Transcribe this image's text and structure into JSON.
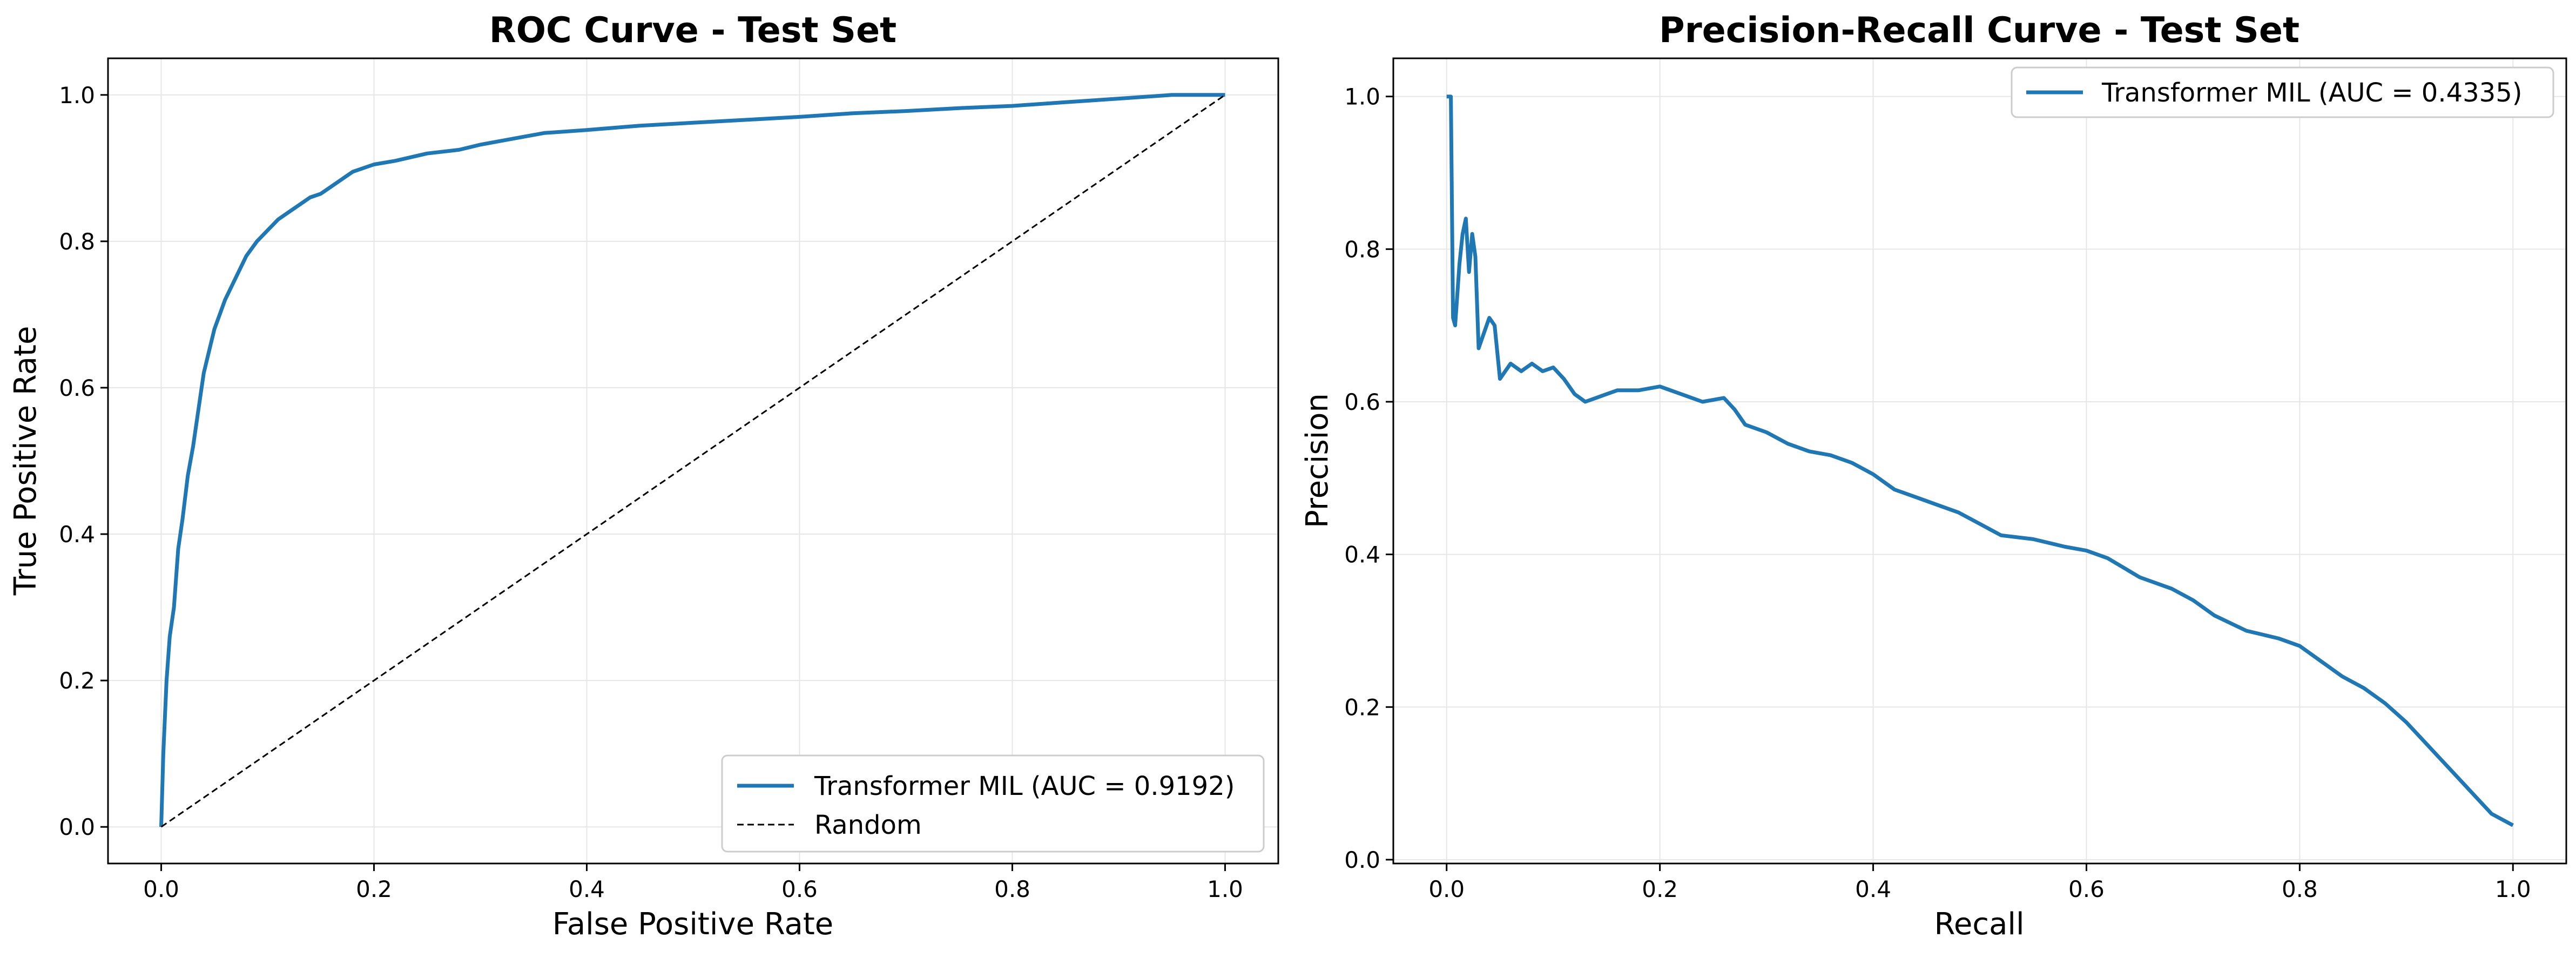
{
  "colors": {
    "series": "#1f77b4",
    "diagonal": "#000000",
    "grid": "#e6e6e6"
  },
  "chart_data": [
    {
      "type": "line",
      "title": "ROC Curve - Test Set",
      "xlabel": "False Positive Rate",
      "ylabel": "True Positive Rate",
      "xlim": [
        -0.05,
        1.05
      ],
      "ylim": [
        -0.05,
        1.05
      ],
      "xticks": [
        0.0,
        0.2,
        0.4,
        0.6,
        0.8,
        1.0
      ],
      "yticks": [
        0.0,
        0.2,
        0.4,
        0.6,
        0.8,
        1.0
      ],
      "xtick_labels": [
        "0.0",
        "0.2",
        "0.4",
        "0.6",
        "0.8",
        "1.0"
      ],
      "ytick_labels": [
        "0.0",
        "0.2",
        "0.4",
        "0.6",
        "0.8",
        "1.0"
      ],
      "grid": true,
      "legend_position": "lower-right",
      "series": [
        {
          "name": "Transformer MIL (AUC = 0.9192)",
          "style": "solid",
          "x": [
            0.0,
            0.002,
            0.005,
            0.008,
            0.012,
            0.016,
            0.02,
            0.025,
            0.03,
            0.035,
            0.04,
            0.045,
            0.05,
            0.06,
            0.07,
            0.08,
            0.09,
            0.1,
            0.11,
            0.12,
            0.13,
            0.14,
            0.15,
            0.16,
            0.18,
            0.2,
            0.22,
            0.25,
            0.28,
            0.3,
            0.33,
            0.36,
            0.4,
            0.45,
            0.5,
            0.55,
            0.6,
            0.65,
            0.7,
            0.75,
            0.8,
            0.85,
            0.9,
            0.95,
            1.0
          ],
          "y": [
            0.0,
            0.1,
            0.2,
            0.26,
            0.3,
            0.38,
            0.42,
            0.48,
            0.52,
            0.57,
            0.62,
            0.65,
            0.68,
            0.72,
            0.75,
            0.78,
            0.8,
            0.815,
            0.83,
            0.84,
            0.85,
            0.86,
            0.865,
            0.875,
            0.895,
            0.905,
            0.91,
            0.92,
            0.925,
            0.932,
            0.94,
            0.948,
            0.952,
            0.958,
            0.962,
            0.966,
            0.97,
            0.975,
            0.978,
            0.982,
            0.985,
            0.99,
            0.995,
            1.0,
            1.0
          ]
        },
        {
          "name": "Random",
          "style": "dashed",
          "x": [
            0.0,
            1.0
          ],
          "y": [
            0.0,
            1.0
          ]
        }
      ]
    },
    {
      "type": "line",
      "title": "Precision-Recall Curve - Test Set",
      "xlabel": "Recall",
      "ylabel": "Precision",
      "xlim": [
        -0.05,
        1.05
      ],
      "ylim": [
        -0.005,
        1.05
      ],
      "xticks": [
        0.0,
        0.2,
        0.4,
        0.6,
        0.8,
        1.0
      ],
      "yticks": [
        0.0,
        0.2,
        0.4,
        0.6,
        0.8,
        1.0
      ],
      "xtick_labels": [
        "0.0",
        "0.2",
        "0.4",
        "0.6",
        "0.8",
        "1.0"
      ],
      "ytick_labels": [
        "0.0",
        "0.2",
        "0.4",
        "0.6",
        "0.8",
        "1.0"
      ],
      "grid": true,
      "legend_position": "upper-right",
      "series": [
        {
          "name": "Transformer MIL (AUC = 0.4335)",
          "style": "solid",
          "x": [
            0.0,
            0.004,
            0.006,
            0.008,
            0.01,
            0.012,
            0.015,
            0.018,
            0.021,
            0.024,
            0.027,
            0.03,
            0.035,
            0.04,
            0.045,
            0.05,
            0.055,
            0.06,
            0.07,
            0.08,
            0.09,
            0.1,
            0.11,
            0.12,
            0.13,
            0.14,
            0.15,
            0.16,
            0.18,
            0.2,
            0.22,
            0.24,
            0.26,
            0.27,
            0.28,
            0.3,
            0.32,
            0.34,
            0.36,
            0.38,
            0.4,
            0.42,
            0.44,
            0.46,
            0.48,
            0.5,
            0.52,
            0.55,
            0.58,
            0.6,
            0.62,
            0.65,
            0.68,
            0.7,
            0.72,
            0.75,
            0.78,
            0.8,
            0.82,
            0.84,
            0.86,
            0.88,
            0.9,
            0.92,
            0.94,
            0.96,
            0.98,
            1.0
          ],
          "y": [
            1.0,
            1.0,
            0.71,
            0.7,
            0.74,
            0.78,
            0.82,
            0.84,
            0.77,
            0.82,
            0.79,
            0.67,
            0.69,
            0.71,
            0.7,
            0.63,
            0.64,
            0.65,
            0.64,
            0.65,
            0.64,
            0.645,
            0.63,
            0.61,
            0.6,
            0.605,
            0.61,
            0.615,
            0.615,
            0.62,
            0.61,
            0.6,
            0.605,
            0.59,
            0.57,
            0.56,
            0.545,
            0.535,
            0.53,
            0.52,
            0.505,
            0.485,
            0.475,
            0.465,
            0.455,
            0.44,
            0.425,
            0.42,
            0.41,
            0.405,
            0.395,
            0.37,
            0.355,
            0.34,
            0.32,
            0.3,
            0.29,
            0.28,
            0.26,
            0.24,
            0.225,
            0.205,
            0.18,
            0.15,
            0.12,
            0.09,
            0.06,
            0.045
          ]
        }
      ]
    }
  ]
}
